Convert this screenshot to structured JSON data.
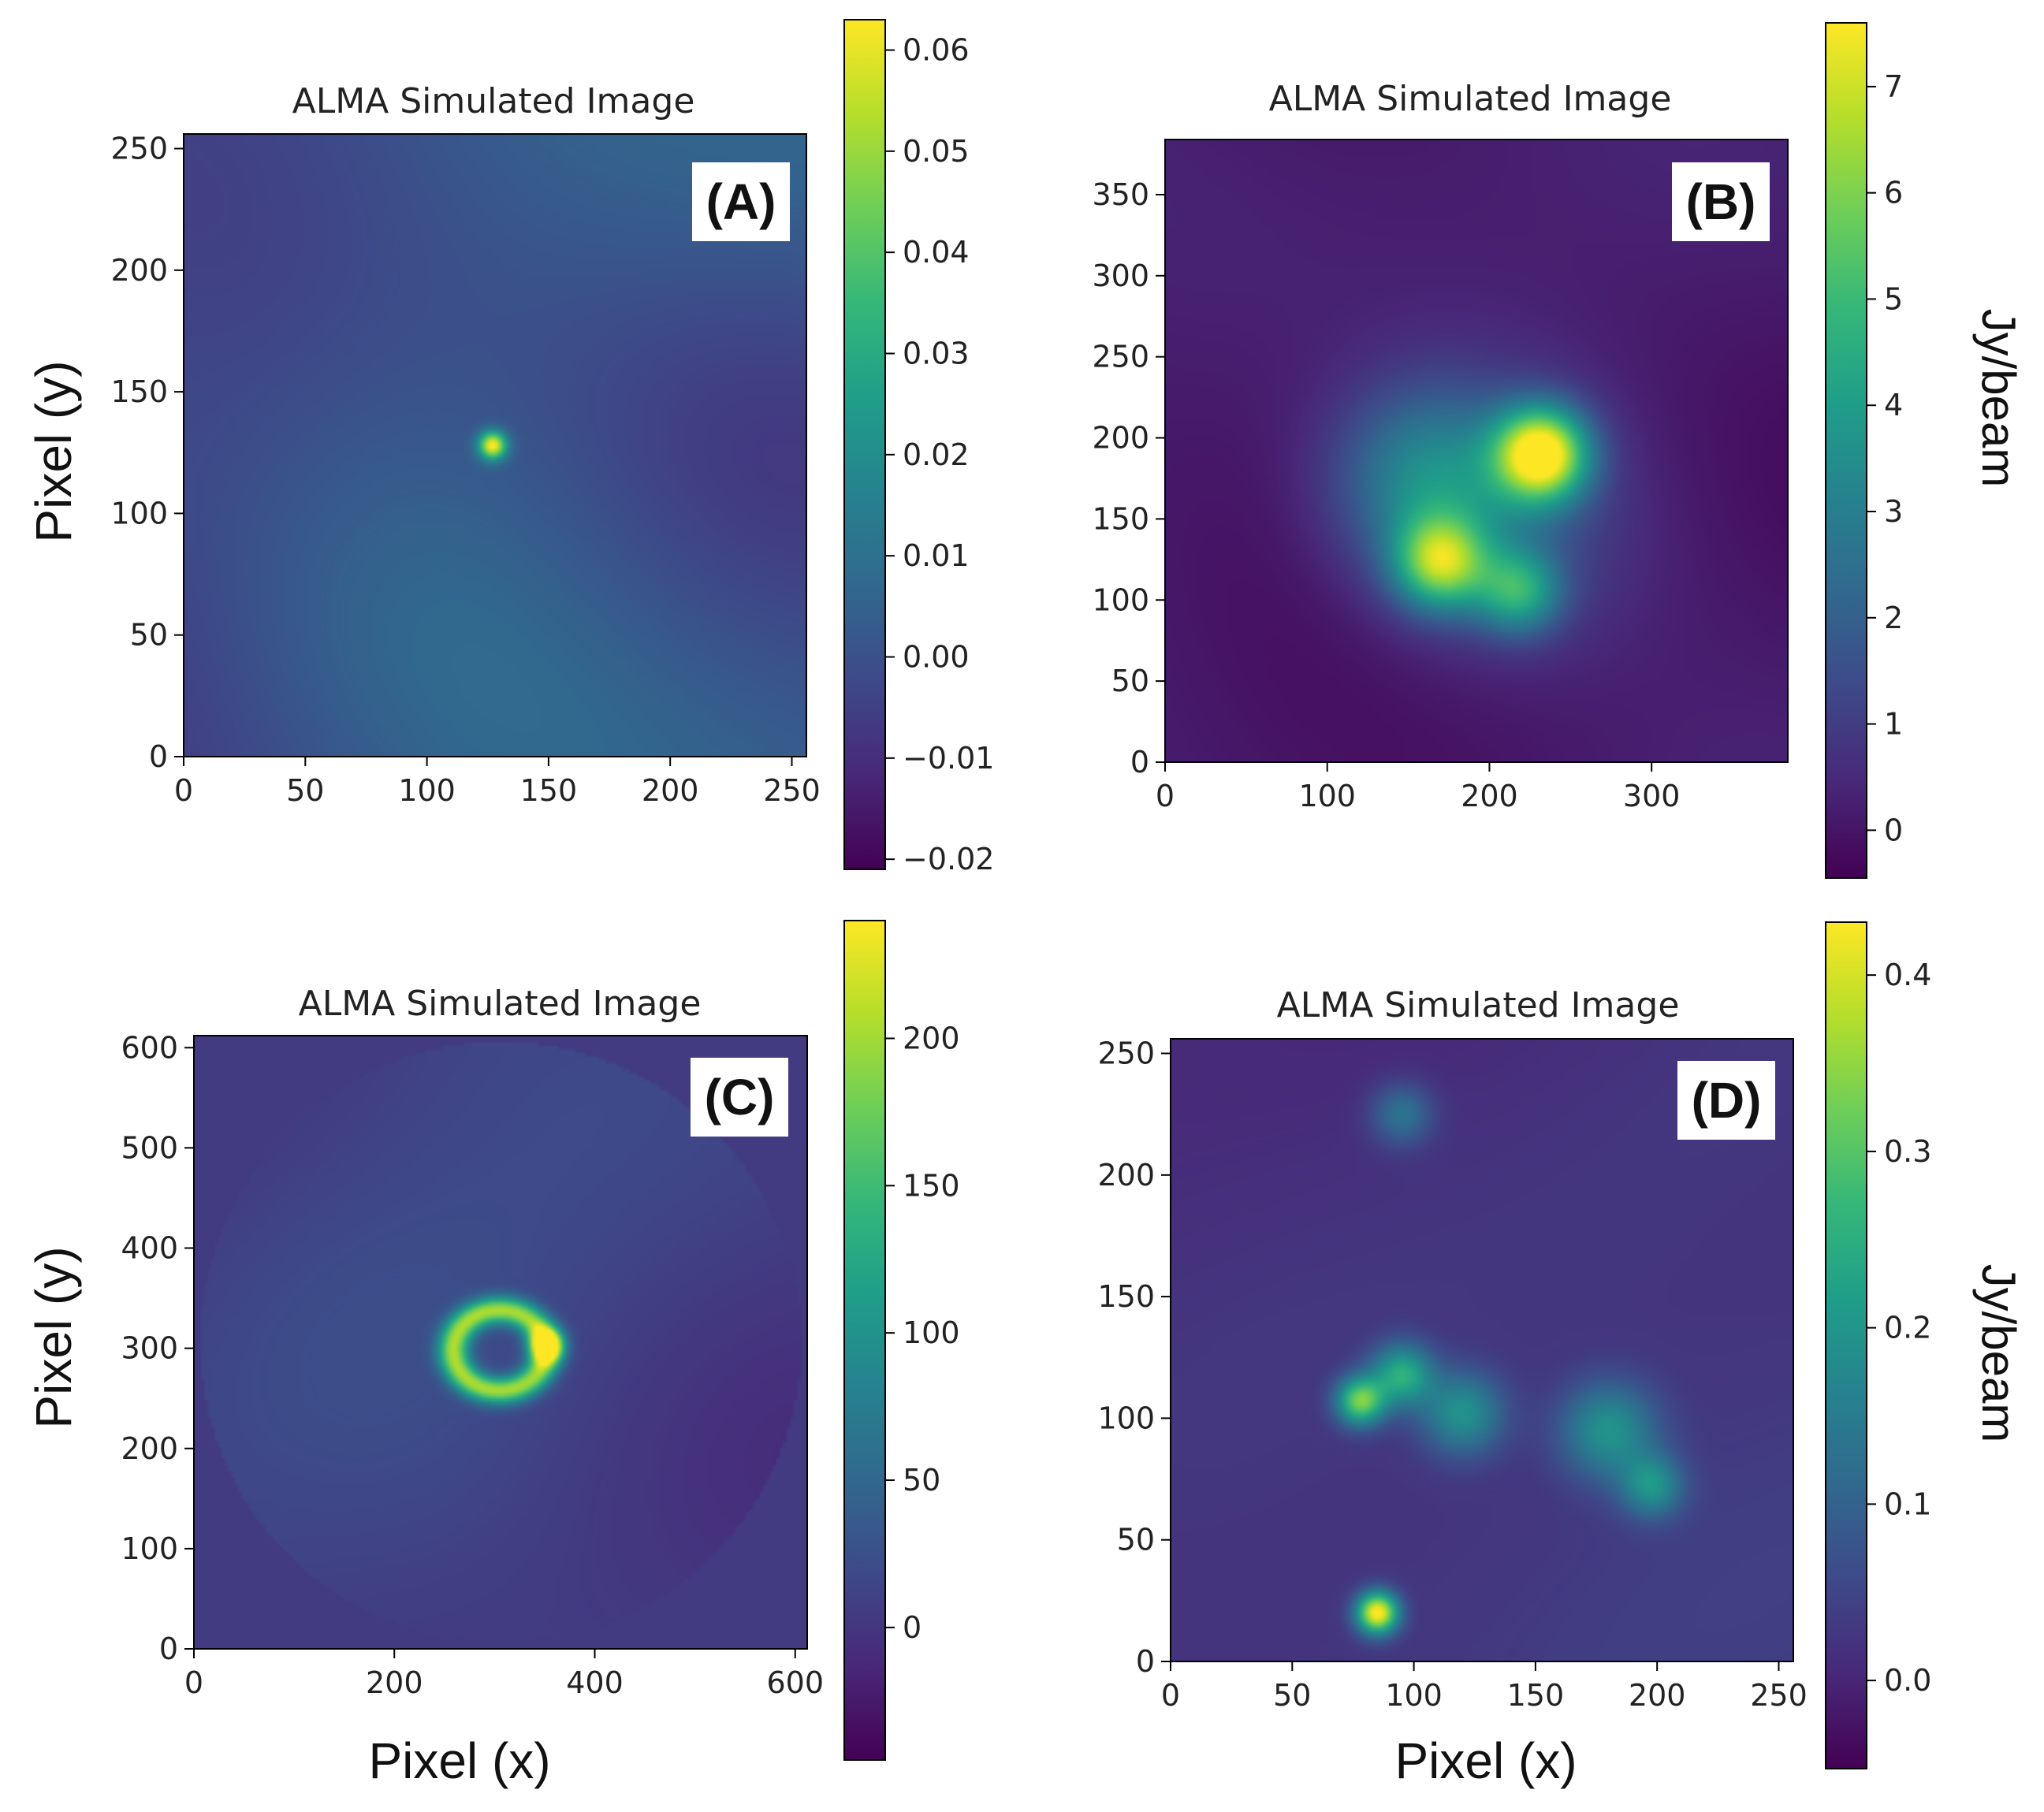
{
  "figure": {
    "ylabel": "Pixel (y)",
    "xlabel": "Pixel (x)",
    "colorbar_label": "Jy/beam"
  },
  "colors": {
    "viridis": [
      "#440154",
      "#482878",
      "#3e4989",
      "#31688e",
      "#26828e",
      "#1f9e89",
      "#35b779",
      "#6ece58",
      "#b5de2b",
      "#fde725"
    ]
  },
  "chart_data": [
    {
      "id": "A",
      "type": "heatmap",
      "panel_label": "(A)",
      "title": "ALMA Simulated Image",
      "xlim": [
        0,
        256
      ],
      "ylim": [
        0,
        256
      ],
      "xticks": [
        0,
        50,
        100,
        150,
        200,
        250
      ],
      "yticks": [
        0,
        50,
        100,
        150,
        200,
        250
      ],
      "colorbar": {
        "range": [
          -0.021,
          0.063
        ],
        "ticks": [
          -0.02,
          -0.01,
          0.0,
          0.01,
          0.02,
          0.03,
          0.04,
          0.05,
          0.06
        ],
        "tick_labels": [
          "−0.02",
          "−0.01",
          "0.00",
          "0.01",
          "0.02",
          "0.03",
          "0.04",
          "0.05",
          "0.06"
        ],
        "label": ""
      },
      "background_level": 0.0,
      "noise_level": 0.015,
      "sources": [
        {
          "x": 127,
          "y": 128,
          "peak": 0.063,
          "sigma": 4
        }
      ]
    },
    {
      "id": "B",
      "type": "heatmap",
      "panel_label": "(B)",
      "title": "ALMA Simulated Image",
      "xlim": [
        0,
        384
      ],
      "ylim": [
        0,
        384
      ],
      "xticks": [
        0,
        100,
        200,
        300
      ],
      "yticks": [
        0,
        50,
        100,
        150,
        200,
        250,
        300,
        350
      ],
      "colorbar": {
        "range": [
          -0.45,
          7.6
        ],
        "ticks": [
          0,
          1,
          2,
          3,
          4,
          5,
          6,
          7
        ],
        "tick_labels": [
          "0",
          "1",
          "2",
          "3",
          "4",
          "5",
          "6",
          "7"
        ],
        "label": "Jy/beam"
      },
      "background_level": 0.1,
      "noise_level": 0.5,
      "sources": [
        {
          "x": 232,
          "y": 190,
          "peak": 7.4,
          "sigma": 20
        },
        {
          "x": 170,
          "y": 123,
          "peak": 5.2,
          "sigma": 20
        },
        {
          "x": 218,
          "y": 105,
          "peak": 3.6,
          "sigma": 18
        },
        {
          "x": 160,
          "y": 175,
          "peak": 2.4,
          "sigma": 38
        },
        {
          "x": 200,
          "y": 150,
          "peak": 1.8,
          "sigma": 60
        }
      ]
    },
    {
      "id": "C",
      "type": "heatmap",
      "panel_label": "(C)",
      "title": "ALMA Simulated Image",
      "xlim": [
        0,
        612
      ],
      "ylim": [
        0,
        612
      ],
      "xticks": [
        0,
        200,
        400,
        600
      ],
      "yticks": [
        0,
        100,
        200,
        300,
        400,
        500,
        600
      ],
      "colorbar": {
        "range": [
          -45,
          240
        ],
        "ticks": [
          0,
          50,
          100,
          150,
          200
        ],
        "tick_labels": [
          "0",
          "50",
          "100",
          "150",
          "200"
        ],
        "label": ""
      },
      "background_level": 10,
      "noise_level": 22,
      "disk": {
        "x": 306,
        "y": 306,
        "radius": 300,
        "level": 5
      },
      "ring": {
        "x": 305,
        "y": 298,
        "rx": 46,
        "ry": 40,
        "width": 11,
        "peak": 185
      },
      "sources": [
        {
          "x": 352,
          "y": 303,
          "peak": 230,
          "sigma": 11
        }
      ]
    },
    {
      "id": "D",
      "type": "heatmap",
      "panel_label": "(D)",
      "title": "ALMA Simulated Image",
      "xlim": [
        0,
        256
      ],
      "ylim": [
        0,
        256
      ],
      "xticks": [
        0,
        50,
        100,
        150,
        200,
        250
      ],
      "yticks": [
        0,
        50,
        100,
        150,
        200,
        250
      ],
      "colorbar": {
        "range": [
          -0.05,
          0.43
        ],
        "ticks": [
          0.0,
          0.1,
          0.2,
          0.3,
          0.4
        ],
        "tick_labels": [
          "0.0",
          "0.1",
          "0.2",
          "0.3",
          "0.4"
        ],
        "label": "Jy/beam"
      },
      "background_level": 0.02,
      "noise_level": 0.03,
      "sources": [
        {
          "x": 85,
          "y": 20,
          "peak": 0.42,
          "sigma": 6
        },
        {
          "x": 78,
          "y": 107,
          "peak": 0.3,
          "sigma": 7
        },
        {
          "x": 95,
          "y": 118,
          "peak": 0.22,
          "sigma": 9
        },
        {
          "x": 120,
          "y": 102,
          "peak": 0.17,
          "sigma": 12
        },
        {
          "x": 180,
          "y": 95,
          "peak": 0.17,
          "sigma": 14
        },
        {
          "x": 198,
          "y": 72,
          "peak": 0.16,
          "sigma": 9
        },
        {
          "x": 95,
          "y": 225,
          "peak": 0.12,
          "sigma": 9
        }
      ]
    }
  ]
}
